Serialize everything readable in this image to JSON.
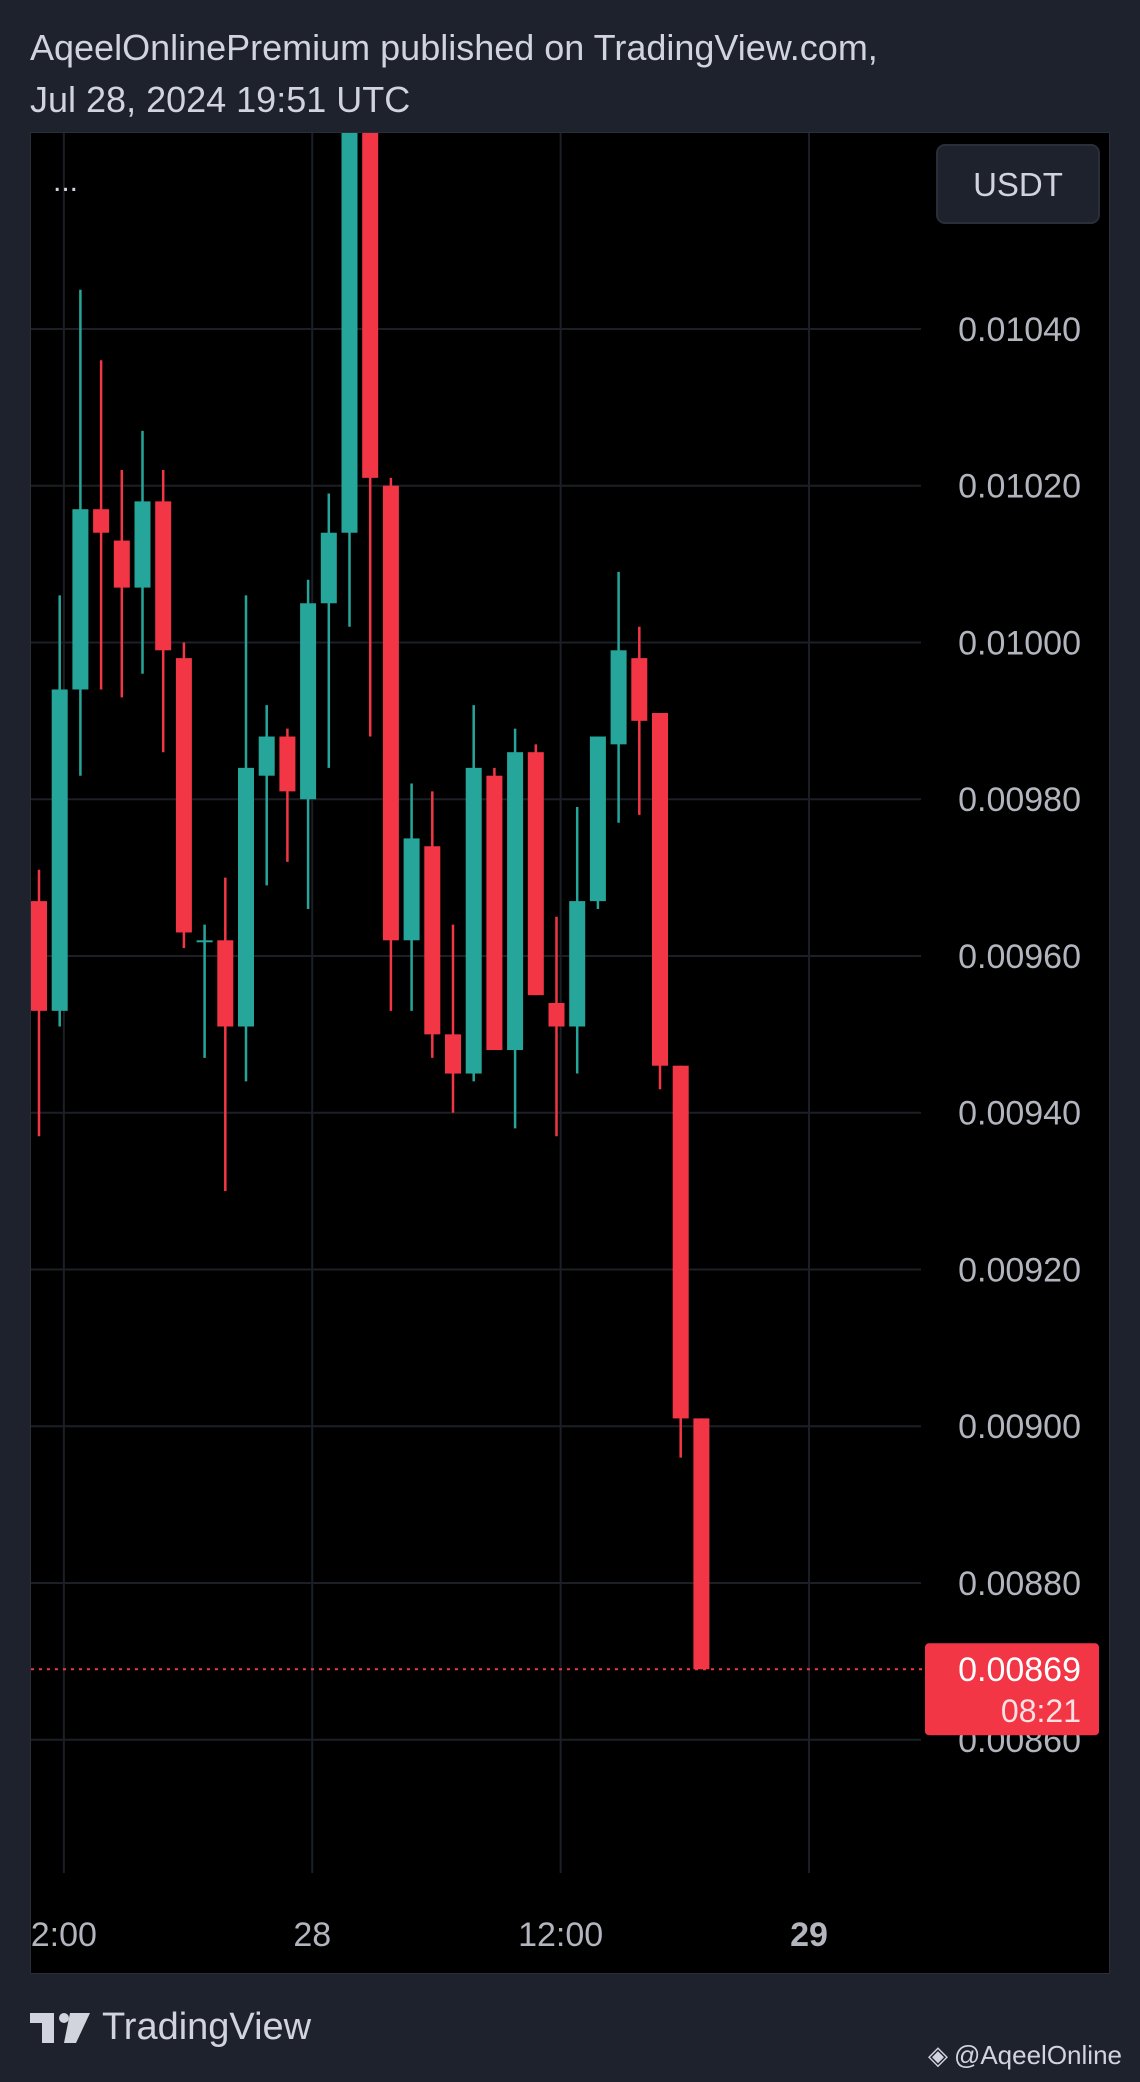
{
  "header": {
    "line1": "AqeelOnlinePremium published on TradingView.com,",
    "line2": "Jul 28, 2024 19:51 UTC"
  },
  "toolbar": {
    "more_label": "...",
    "currency_label": "USDT"
  },
  "footer": {
    "brand": "TradingView",
    "watermark": "@AqeelOnline"
  },
  "colors": {
    "up": "#26a69a",
    "down": "#f23645",
    "grid": "#1c1f26",
    "axis_text": "#b2b5be"
  },
  "chart_data": {
    "type": "candlestick",
    "ylim": [
      0.00843,
      0.01065
    ],
    "y_ticks": [
      {
        "v": 0.0104,
        "label": "0.01040"
      },
      {
        "v": 0.0102,
        "label": "0.01020"
      },
      {
        "v": 0.01,
        "label": "0.01000"
      },
      {
        "v": 0.0098,
        "label": "0.00980"
      },
      {
        "v": 0.0096,
        "label": "0.00960"
      },
      {
        "v": 0.0094,
        "label": "0.00940"
      },
      {
        "v": 0.0092,
        "label": "0.00920"
      },
      {
        "v": 0.009,
        "label": "0.00900"
      },
      {
        "v": 0.0088,
        "label": "0.00880"
      },
      {
        "v": 0.0086,
        "label": "0.00860"
      }
    ],
    "x_ticks": [
      {
        "i": 1.2,
        "label": "2:00",
        "bold": false
      },
      {
        "i": 13.2,
        "label": "28",
        "bold": false
      },
      {
        "i": 25.2,
        "label": "12:00",
        "bold": false
      },
      {
        "i": 37.2,
        "label": "29",
        "bold": true
      }
    ],
    "last_price": {
      "value": 0.00869,
      "label": "0.00869",
      "countdown": "08:21"
    },
    "candles": [
      {
        "o": 0.00967,
        "h": 0.00971,
        "l": 0.00937,
        "c": 0.00953
      },
      {
        "o": 0.00953,
        "h": 0.01006,
        "l": 0.00951,
        "c": 0.00994
      },
      {
        "o": 0.00994,
        "h": 0.01045,
        "l": 0.00983,
        "c": 0.01017
      },
      {
        "o": 0.01017,
        "h": 0.01036,
        "l": 0.00994,
        "c": 0.01014
      },
      {
        "o": 0.01013,
        "h": 0.01022,
        "l": 0.00993,
        "c": 0.01007
      },
      {
        "o": 0.01007,
        "h": 0.01027,
        "l": 0.00996,
        "c": 0.01018
      },
      {
        "o": 0.01018,
        "h": 0.01022,
        "l": 0.00986,
        "c": 0.00999
      },
      {
        "o": 0.00998,
        "h": 0.01,
        "l": 0.00961,
        "c": 0.00963
      },
      {
        "o": 0.00962,
        "h": 0.00964,
        "l": 0.00947,
        "c": 0.00962
      },
      {
        "o": 0.00962,
        "h": 0.0097,
        "l": 0.0093,
        "c": 0.00951
      },
      {
        "o": 0.00951,
        "h": 0.01006,
        "l": 0.00944,
        "c": 0.00984
      },
      {
        "o": 0.00983,
        "h": 0.00992,
        "l": 0.00969,
        "c": 0.00988
      },
      {
        "o": 0.00988,
        "h": 0.00989,
        "l": 0.00972,
        "c": 0.00981
      },
      {
        "o": 0.0098,
        "h": 0.01008,
        "l": 0.00966,
        "c": 0.01005
      },
      {
        "o": 0.01005,
        "h": 0.01019,
        "l": 0.00984,
        "c": 0.01014
      },
      {
        "o": 0.01014,
        "h": 0.01065,
        "l": 0.01002,
        "c": 0.01065
      },
      {
        "o": 0.01065,
        "h": 0.01065,
        "l": 0.00988,
        "c": 0.01021
      },
      {
        "o": 0.0102,
        "h": 0.01021,
        "l": 0.00953,
        "c": 0.00962
      },
      {
        "o": 0.00962,
        "h": 0.00982,
        "l": 0.00953,
        "c": 0.00975
      },
      {
        "o": 0.00974,
        "h": 0.00981,
        "l": 0.00947,
        "c": 0.0095
      },
      {
        "o": 0.0095,
        "h": 0.00964,
        "l": 0.0094,
        "c": 0.00945
      },
      {
        "o": 0.00945,
        "h": 0.00992,
        "l": 0.00944,
        "c": 0.00984
      },
      {
        "o": 0.00983,
        "h": 0.00984,
        "l": 0.00948,
        "c": 0.00948
      },
      {
        "o": 0.00948,
        "h": 0.00989,
        "l": 0.00938,
        "c": 0.00986
      },
      {
        "o": 0.00986,
        "h": 0.00987,
        "l": 0.00955,
        "c": 0.00955
      },
      {
        "o": 0.00954,
        "h": 0.00965,
        "l": 0.00937,
        "c": 0.00951
      },
      {
        "o": 0.00951,
        "h": 0.00979,
        "l": 0.00945,
        "c": 0.00967
      },
      {
        "o": 0.00967,
        "h": 0.00988,
        "l": 0.00966,
        "c": 0.00988
      },
      {
        "o": 0.00987,
        "h": 0.01009,
        "l": 0.00977,
        "c": 0.00999
      },
      {
        "o": 0.00998,
        "h": 0.01002,
        "l": 0.00978,
        "c": 0.0099
      },
      {
        "o": 0.00991,
        "h": 0.00991,
        "l": 0.00943,
        "c": 0.00946
      },
      {
        "o": 0.00946,
        "h": 0.00946,
        "l": 0.00896,
        "c": 0.00901
      },
      {
        "o": 0.00901,
        "h": 0.00901,
        "l": 0.00869,
        "c": 0.00869
      }
    ]
  }
}
